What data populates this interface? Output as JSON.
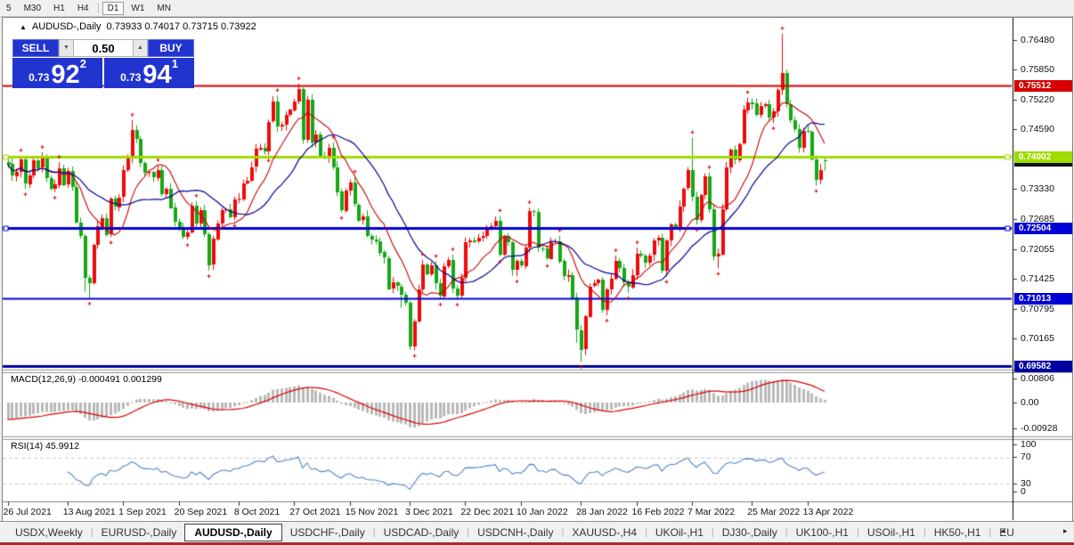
{
  "toolbar": {
    "timeframes": [
      "5",
      "M30",
      "H1",
      "H4",
      "D1",
      "W1",
      "MN"
    ],
    "active": "D1"
  },
  "title": {
    "collapse_icon": "▲",
    "symbol": "AUDUSD-,Daily",
    "ohlc": "0.73933 0.74017 0.73715 0.73922"
  },
  "trade_panel": {
    "sell_label": "SELL",
    "buy_label": "BUY",
    "amount": "0.50",
    "sell_price_small": "0.73",
    "sell_price_big": "92",
    "sell_price_sup": "2",
    "buy_price_small": "0.73",
    "buy_price_big": "94",
    "buy_price_sup": "1",
    "spin_down_icon": "▼",
    "spin_up_icon": "▲"
  },
  "price_axis": {
    "ticks": [
      {
        "label": "0.76480",
        "price": 0.7648
      },
      {
        "label": "0.75850",
        "price": 0.7585
      },
      {
        "label": "0.75220",
        "price": 0.7522
      },
      {
        "label": "0.74590",
        "price": 0.7459
      },
      {
        "label": "0.73330",
        "price": 0.7333
      },
      {
        "label": "0.72685",
        "price": 0.72685
      },
      {
        "label": "0.72055",
        "price": 0.72055
      },
      {
        "label": "0.71425",
        "price": 0.71425
      },
      {
        "label": "0.70795",
        "price": 0.70795
      },
      {
        "label": "0.70165",
        "price": 0.70165
      }
    ],
    "badges": [
      {
        "label": "0.73922",
        "price": 0.73922,
        "bg": "#111111",
        "fg": "#ffffff",
        "layer": 2
      },
      {
        "label": "0.75512",
        "price": 0.75512,
        "bg": "#d60000",
        "fg": "#ffffff",
        "layer": 3
      },
      {
        "label": "0.74002",
        "price": 0.74002,
        "bg": "#9fdc00",
        "fg": "#ffffff",
        "layer": 3
      },
      {
        "label": "0.72504",
        "price": 0.72504,
        "bg": "#0000d6",
        "fg": "#ffffff",
        "layer": 3
      },
      {
        "label": "0.71013",
        "price": 0.71013,
        "bg": "#0000d6",
        "fg": "#ffffff",
        "layer": 3
      },
      {
        "label": "0.69582",
        "price": 0.69582,
        "bg": "#0000a0",
        "fg": "#ffffff",
        "layer": 3
      }
    ]
  },
  "hlines": [
    {
      "price": 0.75512,
      "color": "#d60000",
      "w": 2,
      "marker": false
    },
    {
      "price": 0.74002,
      "color": "#9fdc00",
      "w": 3,
      "marker": true
    },
    {
      "price": 0.72504,
      "color": "#0000d6",
      "w": 3,
      "marker": true
    },
    {
      "price": 0.71013,
      "color": "#0000d6",
      "w": 2,
      "marker": false
    },
    {
      "price": 0.69582,
      "color": "#0000a0",
      "w": 3,
      "marker": false
    }
  ],
  "date_axis": {
    "ticks": [
      {
        "label": "26 Jul 2021",
        "bar": 0
      },
      {
        "label": "13 Aug 2021",
        "bar": 14
      },
      {
        "label": "1 Sep 2021",
        "bar": 27
      },
      {
        "label": "20 Sep 2021",
        "bar": 40
      },
      {
        "label": "8 Oct 2021",
        "bar": 54
      },
      {
        "label": "27 Oct 2021",
        "bar": 67
      },
      {
        "label": "15 Nov 2021",
        "bar": 80
      },
      {
        "label": "3 Dec 2021",
        "bar": 94
      },
      {
        "label": "22 Dec 2021",
        "bar": 107
      },
      {
        "label": "10 Jan 2022",
        "bar": 120
      },
      {
        "label": "28 Jan 2022",
        "bar": 134
      },
      {
        "label": "16 Feb 2022",
        "bar": 147
      },
      {
        "label": "7 Mar 2022",
        "bar": 160
      },
      {
        "label": "25 Mar 2022",
        "bar": 174
      },
      {
        "label": "13 Apr 2022",
        "bar": 187
      }
    ]
  },
  "macd_panel": {
    "label": "MACD(12,26,9) -0.000491 0.001299",
    "scale": [
      "0.00806",
      "0.00",
      "-0.00928"
    ]
  },
  "rsi_panel": {
    "label": "RSI(14) 45.9912",
    "scale": [
      "100",
      "70",
      "30",
      "0"
    ],
    "levels": [
      70,
      30
    ]
  },
  "tabs": {
    "items": [
      "USDX,Weekly",
      "EURUSD-,Daily",
      "AUDUSD-,Daily",
      "USDCHF-,Daily",
      "USDCAD-,Daily",
      "USDCNH-,Daily",
      "XAUUSD-,H4",
      "UKOil-,H1",
      "DJ30-,Daily",
      "UK100-,H1",
      "USOil-,H1",
      "HK50-,H1",
      "EU"
    ],
    "active_index": 2,
    "scroll_left_icon": "◂",
    "scroll_right_icon": "▸"
  },
  "chart_data": {
    "type": "candlestick",
    "symbol": "AUDUSD-",
    "timeframe": "Daily",
    "ylim": [
      0.69534,
      0.76734
    ],
    "colors": {
      "up": "#ee0a0a",
      "down": "#15a815",
      "ma_fast": "#cc0000",
      "ma_slow": "#000096",
      "macd_hist": "#b9b9b9",
      "macd_signal": "#dd0000",
      "rsi": "#4f86c6",
      "rsi_levels": "#c8c8c8",
      "fractal": "#e00000"
    },
    "ma_fast_period": 10,
    "ma_slow_period": 21,
    "macd_params": [
      12,
      26,
      9
    ],
    "rsi_period": 14,
    "first_open": 0.739,
    "closes": [
      0.7385,
      0.736,
      0.7369,
      0.7395,
      0.7344,
      0.7362,
      0.7394,
      0.7378,
      0.74,
      0.7355,
      0.7333,
      0.7342,
      0.7377,
      0.7342,
      0.737,
      0.7337,
      0.7262,
      0.7233,
      0.7145,
      0.7134,
      0.7214,
      0.7254,
      0.7272,
      0.7237,
      0.7312,
      0.7295,
      0.7315,
      0.7372,
      0.74,
      0.7457,
      0.7438,
      0.7387,
      0.7367,
      0.7368,
      0.7356,
      0.7373,
      0.7322,
      0.7334,
      0.7293,
      0.7263,
      0.7252,
      0.7232,
      0.7241,
      0.7297,
      0.726,
      0.7288,
      0.7237,
      0.7172,
      0.7227,
      0.726,
      0.7288,
      0.729,
      0.7274,
      0.7311,
      0.7312,
      0.7345,
      0.735,
      0.7379,
      0.7417,
      0.742,
      0.7413,
      0.7475,
      0.7517,
      0.7465,
      0.7468,
      0.7489,
      0.75,
      0.7518,
      0.7544,
      0.7437,
      0.7521,
      0.743,
      0.7447,
      0.7401,
      0.7398,
      0.742,
      0.7379,
      0.7327,
      0.7287,
      0.733,
      0.7346,
      0.73,
      0.7267,
      0.7275,
      0.7233,
      0.7226,
      0.7223,
      0.7199,
      0.7187,
      0.7122,
      0.7135,
      0.7127,
      0.711,
      0.7093,
      0.7,
      0.7053,
      0.7121,
      0.7173,
      0.7152,
      0.7171,
      0.7133,
      0.7106,
      0.717,
      0.7183,
      0.7123,
      0.7108,
      0.7146,
      0.7221,
      0.7225,
      0.7222,
      0.723,
      0.7234,
      0.725,
      0.7255,
      0.7266,
      0.7194,
      0.7233,
      0.722,
      0.7161,
      0.718,
      0.717,
      0.7209,
      0.7286,
      0.7284,
      0.7208,
      0.7207,
      0.7186,
      0.7221,
      0.7223,
      0.718,
      0.7148,
      0.7151,
      0.7103,
      0.7035,
      0.6994,
      0.7064,
      0.7127,
      0.7133,
      0.7141,
      0.7077,
      0.7121,
      0.7143,
      0.7181,
      0.7166,
      0.7135,
      0.7125,
      0.7151,
      0.7196,
      0.7193,
      0.7178,
      0.7193,
      0.7224,
      0.7229,
      0.716,
      0.7224,
      0.7258,
      0.7253,
      0.7296,
      0.7334,
      0.7372,
      0.7316,
      0.7268,
      0.732,
      0.7359,
      0.729,
      0.719,
      0.7195,
      0.729,
      0.7378,
      0.7415,
      0.7395,
      0.7428,
      0.75,
      0.7516,
      0.7513,
      0.7489,
      0.7508,
      0.7511,
      0.7483,
      0.7497,
      0.7542,
      0.7577,
      0.7512,
      0.7478,
      0.7459,
      0.742,
      0.7455,
      0.7454,
      0.7395,
      0.7352,
      0.7373,
      0.7392
    ],
    "wick_overrides": {
      "18": [
        null,
        0.7115
      ],
      "19": [
        null,
        0.7102
      ],
      "29": [
        0.7478,
        null
      ],
      "47": [
        null,
        0.716
      ],
      "68": [
        0.7555,
        null
      ],
      "69": [
        null,
        0.7428
      ],
      "92": [
        null,
        0.7082
      ],
      "94": [
        null,
        0.69935
      ],
      "133": [
        null,
        0.7008
      ],
      "134": [
        null,
        0.6968
      ],
      "160": [
        0.7441,
        null
      ],
      "166": [
        null,
        0.7165
      ],
      "181": [
        0.76608,
        null
      ],
      "190": [
        null,
        0.73425
      ]
    },
    "last_candle": {
      "o": 0.73933,
      "h": 0.74017,
      "l": 0.73715,
      "c": 0.73922
    }
  }
}
